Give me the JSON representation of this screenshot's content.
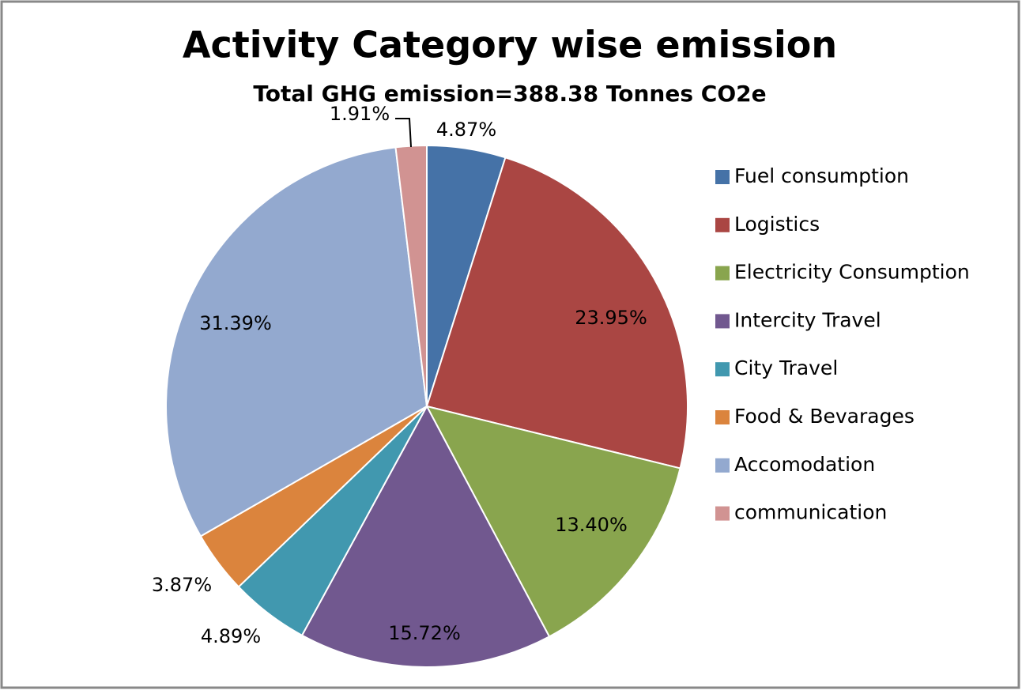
{
  "chart_data": {
    "type": "pie",
    "title": "Activity Category wise emission",
    "subtitle": "Total GHG emission=388.38 Tonnes CO2e",
    "categories": [
      "Fuel consumption",
      "Logistics",
      "Electricity Consumption",
      "Intercity Travel",
      "City Travel",
      "Food & Bevarages",
      "Accomodation",
      "communication"
    ],
    "values": [
      4.87,
      23.95,
      13.4,
      15.72,
      4.89,
      3.87,
      31.39,
      1.91
    ],
    "value_labels": [
      "4.87%",
      "23.95%",
      "13.40%",
      "15.72%",
      "4.89%",
      "3.87%",
      "31.39%",
      "1.91%"
    ],
    "colors": [
      "#4572a7",
      "#aa4643",
      "#89a54e",
      "#71588f",
      "#4198af",
      "#db843d",
      "#93a9cf",
      "#d19392"
    ],
    "legend": "right"
  }
}
